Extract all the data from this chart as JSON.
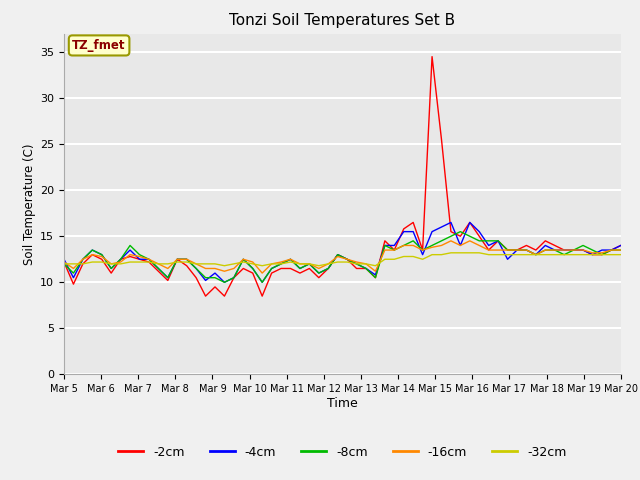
{
  "title": "Tonzi Soil Temperatures Set B",
  "xlabel": "Time",
  "ylabel": "Soil Temperature (C)",
  "annotation": "TZ_fmet",
  "ylim": [
    0,
    37
  ],
  "yticks": [
    0,
    5,
    10,
    15,
    20,
    25,
    30,
    35
  ],
  "x_labels": [
    "Mar 5",
    "Mar 6",
    "Mar 7",
    "Mar 8",
    "Mar 9",
    "Mar 10",
    "Mar 11",
    "Mar 12",
    "Mar 13",
    "Mar 14",
    "Mar 15",
    "Mar 16",
    "Mar 17",
    "Mar 18",
    "Mar 19",
    "Mar 20"
  ],
  "legend_labels": [
    "-2cm",
    "-4cm",
    "-8cm",
    "-16cm",
    "-32cm"
  ],
  "legend_colors": [
    "#ff0000",
    "#0000ff",
    "#00bb00",
    "#ff8800",
    "#cccc00"
  ],
  "bg_color": "#e8e8e8",
  "grid_color": "#ffffff",
  "series": {
    "neg2cm": [
      12.2,
      9.8,
      12.0,
      13.0,
      12.5,
      11.0,
      12.5,
      12.8,
      12.5,
      12.2,
      11.2,
      10.2,
      12.5,
      11.8,
      10.5,
      8.5,
      9.5,
      8.5,
      10.5,
      11.5,
      11.0,
      8.5,
      11.0,
      11.5,
      11.5,
      11.0,
      11.5,
      10.5,
      11.5,
      13.0,
      12.5,
      11.5,
      11.5,
      10.5,
      14.5,
      13.5,
      15.8,
      16.5,
      13.5,
      34.5,
      25.5,
      15.5,
      15.0,
      16.5,
      15.0,
      13.5,
      14.5,
      13.5,
      13.5,
      14.0,
      13.5,
      14.5,
      14.0,
      13.5,
      13.5,
      13.5,
      13.0,
      13.0,
      13.5,
      14.0
    ],
    "neg4cm": [
      12.5,
      10.5,
      12.5,
      13.5,
      13.0,
      11.5,
      12.5,
      13.5,
      12.5,
      12.5,
      11.5,
      10.5,
      12.5,
      12.5,
      11.5,
      10.2,
      11.0,
      10.0,
      10.5,
      12.5,
      11.5,
      10.0,
      11.5,
      12.0,
      12.5,
      11.5,
      12.0,
      11.0,
      11.5,
      13.0,
      12.5,
      12.0,
      11.5,
      10.8,
      14.0,
      14.0,
      15.5,
      15.5,
      13.0,
      15.5,
      16.0,
      16.5,
      14.0,
      16.5,
      15.5,
      14.0,
      14.5,
      12.5,
      13.5,
      13.5,
      13.0,
      14.0,
      13.5,
      13.5,
      13.5,
      13.5,
      13.0,
      13.5,
      13.5,
      14.0
    ],
    "neg8cm": [
      12.0,
      11.0,
      12.5,
      13.5,
      13.0,
      11.5,
      12.5,
      14.0,
      13.0,
      12.5,
      11.5,
      10.5,
      12.5,
      12.5,
      11.5,
      10.5,
      10.5,
      10.0,
      10.5,
      12.5,
      11.5,
      10.0,
      11.5,
      12.0,
      12.5,
      11.5,
      12.0,
      11.0,
      11.5,
      13.0,
      12.5,
      12.0,
      11.5,
      10.5,
      14.0,
      13.5,
      14.0,
      14.5,
      13.5,
      14.0,
      14.5,
      15.0,
      15.5,
      15.0,
      14.5,
      14.5,
      14.5,
      13.5,
      13.5,
      13.5,
      13.0,
      13.5,
      13.5,
      13.0,
      13.5,
      14.0,
      13.5,
      13.0,
      13.5,
      13.5
    ],
    "neg16cm": [
      12.2,
      11.5,
      12.5,
      13.0,
      12.8,
      12.0,
      12.2,
      13.0,
      12.8,
      12.5,
      12.0,
      11.5,
      12.5,
      12.5,
      12.0,
      11.5,
      11.5,
      11.2,
      11.5,
      12.5,
      12.2,
      11.0,
      12.0,
      12.2,
      12.5,
      12.0,
      12.0,
      11.5,
      12.0,
      12.8,
      12.5,
      12.2,
      12.0,
      11.2,
      13.5,
      13.5,
      14.0,
      14.0,
      13.5,
      13.8,
      14.0,
      14.5,
      14.0,
      14.5,
      14.0,
      13.5,
      13.5,
      13.5,
      13.5,
      13.5,
      13.0,
      13.5,
      13.5,
      13.5,
      13.5,
      13.5,
      13.2,
      13.2,
      13.5,
      13.5
    ],
    "neg32cm": [
      12.0,
      12.0,
      12.0,
      12.2,
      12.2,
      12.0,
      12.0,
      12.2,
      12.2,
      12.2,
      12.0,
      12.0,
      12.2,
      12.2,
      12.0,
      12.0,
      12.0,
      11.8,
      12.0,
      12.2,
      12.0,
      11.8,
      12.0,
      12.0,
      12.2,
      12.0,
      12.0,
      11.8,
      12.0,
      12.2,
      12.2,
      12.0,
      12.0,
      11.8,
      12.5,
      12.5,
      12.8,
      12.8,
      12.5,
      13.0,
      13.0,
      13.2,
      13.2,
      13.2,
      13.2,
      13.0,
      13.0,
      13.0,
      13.0,
      13.0,
      13.0,
      13.0,
      13.0,
      13.0,
      13.0,
      13.0,
      13.0,
      13.0,
      13.0,
      13.0
    ]
  }
}
